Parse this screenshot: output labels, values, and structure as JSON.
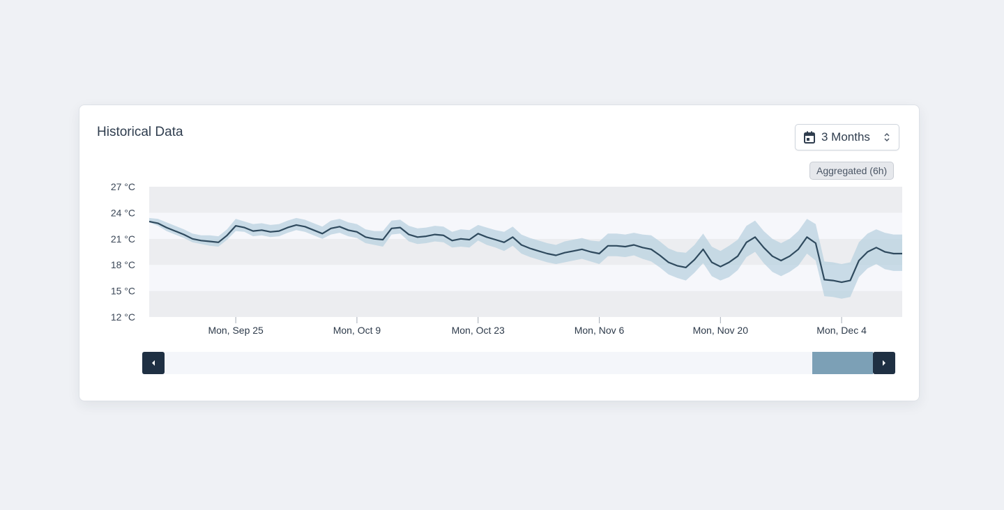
{
  "card": {
    "title": "Historical Data",
    "range_select": {
      "label": "3 Months",
      "icon": "calendar-icon"
    },
    "badge": "Aggregated (6h)"
  },
  "scrollbar": {
    "left_icon": "caret-left-icon",
    "right_icon": "caret-right-icon",
    "thumb_start": 0.89,
    "thumb_end": 0.97
  },
  "colors": {
    "line": "#2f4a5e",
    "band": "#b9d2e0",
    "stripe_dark": "#ecedf0",
    "stripe_light": "#f6f7fb",
    "thumb": "#7ca0b6",
    "scroll_button": "#1f3043"
  },
  "chart_data": {
    "type": "line",
    "title": "",
    "xlabel": "",
    "ylabel": "",
    "ylim": [
      12,
      27
    ],
    "y_ticks": [
      12,
      15,
      18,
      21,
      24,
      27
    ],
    "y_unit": "°C",
    "x_range": [
      "2023-09-15",
      "2023-12-11"
    ],
    "x_ticks": [
      {
        "date": "2023-09-25",
        "label": "Mon, Sep 25"
      },
      {
        "date": "2023-10-09",
        "label": "Mon, Oct 9"
      },
      {
        "date": "2023-10-23",
        "label": "Mon, Oct 23"
      },
      {
        "date": "2023-11-06",
        "label": "Mon, Nov 6"
      },
      {
        "date": "2023-11-20",
        "label": "Mon, Nov 20"
      },
      {
        "date": "2023-12-04",
        "label": "Mon, Dec 4"
      }
    ],
    "grid": "alternating horizontal bands",
    "series": [
      {
        "type": "line",
        "x": [
          "2023-09-15",
          "2023-09-16",
          "2023-09-17",
          "2023-09-18",
          "2023-09-19",
          "2023-09-20",
          "2023-09-21",
          "2023-09-22",
          "2023-09-23",
          "2023-09-24",
          "2023-09-25",
          "2023-09-26",
          "2023-09-27",
          "2023-09-28",
          "2023-09-29",
          "2023-09-30",
          "2023-10-01",
          "2023-10-02",
          "2023-10-03",
          "2023-10-04",
          "2023-10-05",
          "2023-10-06",
          "2023-10-07",
          "2023-10-08",
          "2023-10-09",
          "2023-10-10",
          "2023-10-11",
          "2023-10-12",
          "2023-10-13",
          "2023-10-14",
          "2023-10-15",
          "2023-10-16",
          "2023-10-17",
          "2023-10-18",
          "2023-10-19",
          "2023-10-20",
          "2023-10-21",
          "2023-10-22",
          "2023-10-23",
          "2023-10-24",
          "2023-10-25",
          "2023-10-26",
          "2023-10-27",
          "2023-10-28",
          "2023-10-29",
          "2023-10-30",
          "2023-10-31",
          "2023-11-01",
          "2023-11-02",
          "2023-11-03",
          "2023-11-04",
          "2023-11-05",
          "2023-11-06",
          "2023-11-07",
          "2023-11-08",
          "2023-11-09",
          "2023-11-10",
          "2023-11-11",
          "2023-11-12",
          "2023-11-13",
          "2023-11-14",
          "2023-11-15",
          "2023-11-16",
          "2023-11-17",
          "2023-11-18",
          "2023-11-19",
          "2023-11-20",
          "2023-11-21",
          "2023-11-22",
          "2023-11-23",
          "2023-11-24",
          "2023-11-25",
          "2023-11-26",
          "2023-11-27",
          "2023-11-28",
          "2023-11-29",
          "2023-11-30",
          "2023-12-01",
          "2023-12-02",
          "2023-12-03",
          "2023-12-04",
          "2023-12-05",
          "2023-12-06",
          "2023-12-07",
          "2023-12-08",
          "2023-12-09",
          "2023-12-10",
          "2023-12-11"
        ],
        "values": [
          23.0,
          22.8,
          22.3,
          21.9,
          21.5,
          21.0,
          20.8,
          20.7,
          20.6,
          21.4,
          22.5,
          22.3,
          21.9,
          22.0,
          21.8,
          21.9,
          22.3,
          22.6,
          22.4,
          22.0,
          21.6,
          22.2,
          22.4,
          22.0,
          21.8,
          21.2,
          21.0,
          20.9,
          22.2,
          22.3,
          21.5,
          21.2,
          21.3,
          21.5,
          21.4,
          20.8,
          21.0,
          20.9,
          21.6,
          21.2,
          20.9,
          20.6,
          21.2,
          20.3,
          19.9,
          19.6,
          19.3,
          19.1,
          19.4,
          19.6,
          19.8,
          19.5,
          19.3,
          20.2,
          20.2,
          20.1,
          20.3,
          20.0,
          19.8,
          19.1,
          18.3,
          17.9,
          17.7,
          18.6,
          19.8,
          18.3,
          17.8,
          18.3,
          19.0,
          20.6,
          21.2,
          20.0,
          19.0,
          18.5,
          19.0,
          19.8,
          21.2,
          20.5,
          16.3,
          16.2,
          16.0,
          16.2,
          18.5,
          19.5,
          20.0,
          19.5,
          19.3,
          19.3
        ]
      },
      {
        "type": "area",
        "lower": [
          22.9,
          22.5,
          21.9,
          21.5,
          21.1,
          20.6,
          20.4,
          20.2,
          20.1,
          20.9,
          21.9,
          21.8,
          21.3,
          21.4,
          21.2,
          21.3,
          21.7,
          22.0,
          21.8,
          21.4,
          21.0,
          21.5,
          21.7,
          21.3,
          21.1,
          20.5,
          20.3,
          20.1,
          21.5,
          21.6,
          20.7,
          20.4,
          20.5,
          20.7,
          20.6,
          20.0,
          20.1,
          20.0,
          20.8,
          20.3,
          20.0,
          19.6,
          20.2,
          19.3,
          18.9,
          18.6,
          18.3,
          18.1,
          18.3,
          18.5,
          18.7,
          18.4,
          18.1,
          19.0,
          19.0,
          18.9,
          19.1,
          18.7,
          18.4,
          17.7,
          16.9,
          16.5,
          16.2,
          17.1,
          18.2,
          16.7,
          16.2,
          16.6,
          17.4,
          18.9,
          19.5,
          18.2,
          17.2,
          16.7,
          17.2,
          17.9,
          19.3,
          18.5,
          14.4,
          14.3,
          14.1,
          14.3,
          16.6,
          17.6,
          18.1,
          17.5,
          17.3,
          17.3
        ],
        "upper": [
          23.4,
          23.3,
          22.9,
          22.5,
          22.1,
          21.6,
          21.4,
          21.4,
          21.3,
          22.1,
          23.3,
          23.0,
          22.7,
          22.8,
          22.6,
          22.7,
          23.1,
          23.4,
          23.2,
          22.8,
          22.4,
          23.1,
          23.3,
          22.9,
          22.7,
          22.1,
          21.9,
          21.9,
          23.1,
          23.2,
          22.5,
          22.2,
          22.3,
          22.5,
          22.4,
          21.8,
          22.1,
          22.0,
          22.6,
          22.3,
          22.0,
          21.8,
          22.4,
          21.5,
          21.1,
          20.8,
          20.5,
          20.3,
          20.7,
          20.9,
          21.1,
          20.8,
          20.7,
          21.6,
          21.6,
          21.5,
          21.7,
          21.5,
          21.4,
          20.7,
          19.9,
          19.5,
          19.4,
          20.3,
          21.6,
          20.1,
          19.6,
          20.2,
          20.9,
          22.5,
          23.1,
          21.9,
          21.0,
          20.5,
          21.0,
          21.9,
          23.3,
          22.7,
          18.4,
          18.3,
          18.1,
          18.3,
          20.6,
          21.6,
          22.1,
          21.7,
          21.5,
          21.5
        ]
      }
    ],
    "legend": "none"
  }
}
